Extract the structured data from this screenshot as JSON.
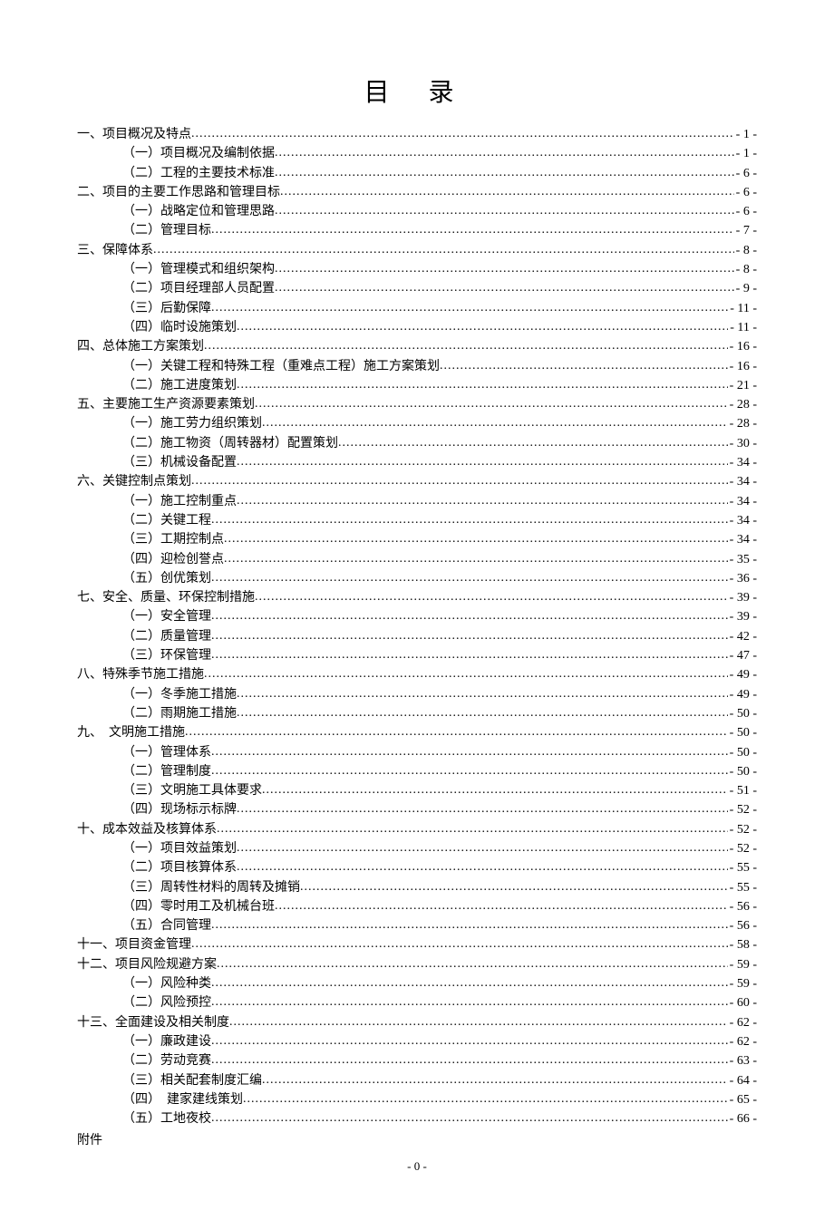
{
  "document": {
    "title": "目 录",
    "page_number": "- 0 -",
    "appendix_label": "附件",
    "background_color": "#ffffff",
    "text_color": "#000000",
    "title_fontsize": 28,
    "body_fontsize": 14,
    "toc": [
      {
        "level": 1,
        "label": "一、项目概况及特点",
        "page": "- 1 -"
      },
      {
        "level": 2,
        "label": "（一）项目概况及编制依据",
        "page": "- 1 -"
      },
      {
        "level": 2,
        "label": "（二）工程的主要技术标准",
        "page": "- 6 -"
      },
      {
        "level": 1,
        "label": "二、项目的主要工作思路和管理目标",
        "page": "- 6 -"
      },
      {
        "level": 2,
        "label": "（一）战略定位和管理思路",
        "page": "- 6 -"
      },
      {
        "level": 2,
        "label": "（二）管理目标",
        "page": "- 7 -"
      },
      {
        "level": 1,
        "label": "三、保障体系",
        "page": "- 8 -"
      },
      {
        "level": 2,
        "label": "（一）管理模式和组织架构",
        "page": "- 8 -"
      },
      {
        "level": 2,
        "label": "（二）项目经理部人员配置",
        "page": "- 9 -"
      },
      {
        "level": 2,
        "label": "（三）后勤保障",
        "page": "- 11 -"
      },
      {
        "level": 2,
        "label": "（四）临时设施策划",
        "page": "- 11 -"
      },
      {
        "level": 1,
        "label": "四、总体施工方案策划",
        "page": "- 16 -"
      },
      {
        "level": 2,
        "label": "（一）关键工程和特殊工程（重难点工程）施工方案策划",
        "page": "- 16 -"
      },
      {
        "level": 2,
        "label": "（二）施工进度策划",
        "page": "- 21 -"
      },
      {
        "level": 1,
        "label": "五、主要施工生产资源要素策划",
        "page": "- 28 -"
      },
      {
        "level": 2,
        "label": "（一）施工劳力组织策划",
        "page": "- 28 -"
      },
      {
        "level": 2,
        "label": "（二）施工物资（周转器材）配置策划",
        "page": "- 30 -"
      },
      {
        "level": 2,
        "label": "（三）机械设备配置",
        "page": "- 34 -"
      },
      {
        "level": 1,
        "label": "六、关键控制点策划",
        "page": "- 34 -"
      },
      {
        "level": 2,
        "label": "（一）施工控制重点",
        "page": "- 34 -"
      },
      {
        "level": 2,
        "label": "（二）关键工程",
        "page": "- 34 -"
      },
      {
        "level": 2,
        "label": "（三）工期控制点",
        "page": "- 34 -"
      },
      {
        "level": 2,
        "label": "（四）迎检创誉点",
        "page": "- 35 -"
      },
      {
        "level": 2,
        "label": "（五）创优策划",
        "page": "- 36 -"
      },
      {
        "level": 1,
        "label": "七、安全、质量、环保控制措施",
        "page": "- 39 -"
      },
      {
        "level": 2,
        "label": "（一）安全管理",
        "page": "- 39 -"
      },
      {
        "level": 2,
        "label": "（二）质量管理",
        "page": "- 42 -"
      },
      {
        "level": 2,
        "label": "（三）环保管理",
        "page": "- 47 -"
      },
      {
        "level": 1,
        "label": "八、特殊季节施工措施",
        "page": "- 49 -"
      },
      {
        "level": 2,
        "label": "（一）冬季施工措施",
        "page": "- 49 -"
      },
      {
        "level": 2,
        "label": "（二）雨期施工措施",
        "page": "- 50 -"
      },
      {
        "level": 1,
        "label": "九、　文明施工措施",
        "page": "- 50 -"
      },
      {
        "level": 2,
        "label": "（一）管理体系",
        "page": "- 50 -"
      },
      {
        "level": 2,
        "label": "（二）管理制度",
        "page": "- 50 -"
      },
      {
        "level": 2,
        "label": "（三）文明施工具体要求",
        "page": "- 51 -"
      },
      {
        "level": 2,
        "label": "（四）现场标示标牌",
        "page": "- 52 -"
      },
      {
        "level": 1,
        "label": "十、成本效益及核算体系",
        "page": "- 52 -"
      },
      {
        "level": 2,
        "label": "（一）项目效益策划",
        "page": "- 52 -"
      },
      {
        "level": 2,
        "label": "（二）项目核算体系",
        "page": "- 55 -"
      },
      {
        "level": 2,
        "label": "（三）周转性材料的周转及摊销",
        "page": "- 55 -"
      },
      {
        "level": 2,
        "label": "（四）零时用工及机械台班",
        "page": "- 56 -"
      },
      {
        "level": 2,
        "label": "（五）合同管理",
        "page": "- 56 -"
      },
      {
        "level": 1,
        "label": "十一、项目资金管理",
        "page": "- 58 -"
      },
      {
        "level": 1,
        "label": "十二、项目风险规避方案",
        "page": "- 59 -"
      },
      {
        "level": 2,
        "label": "（一）风险种类",
        "page": "- 59 -"
      },
      {
        "level": 2,
        "label": "（二）风险预控",
        "page": "- 60 -"
      },
      {
        "level": 1,
        "label": "十三、全面建设及相关制度",
        "page": "- 62 -"
      },
      {
        "level": 2,
        "label": "（一）廉政建设",
        "page": "- 62 -"
      },
      {
        "level": 2,
        "label": "（二）劳动竞赛",
        "page": "- 63 -"
      },
      {
        "level": 2,
        "label": "（三）相关配套制度汇编",
        "page": "- 64 -"
      },
      {
        "level": 2,
        "label": "（四）　建家建线策划",
        "page": "- 65 -"
      },
      {
        "level": 2,
        "label": "（五）工地夜校",
        "page": "- 66 -"
      }
    ]
  }
}
